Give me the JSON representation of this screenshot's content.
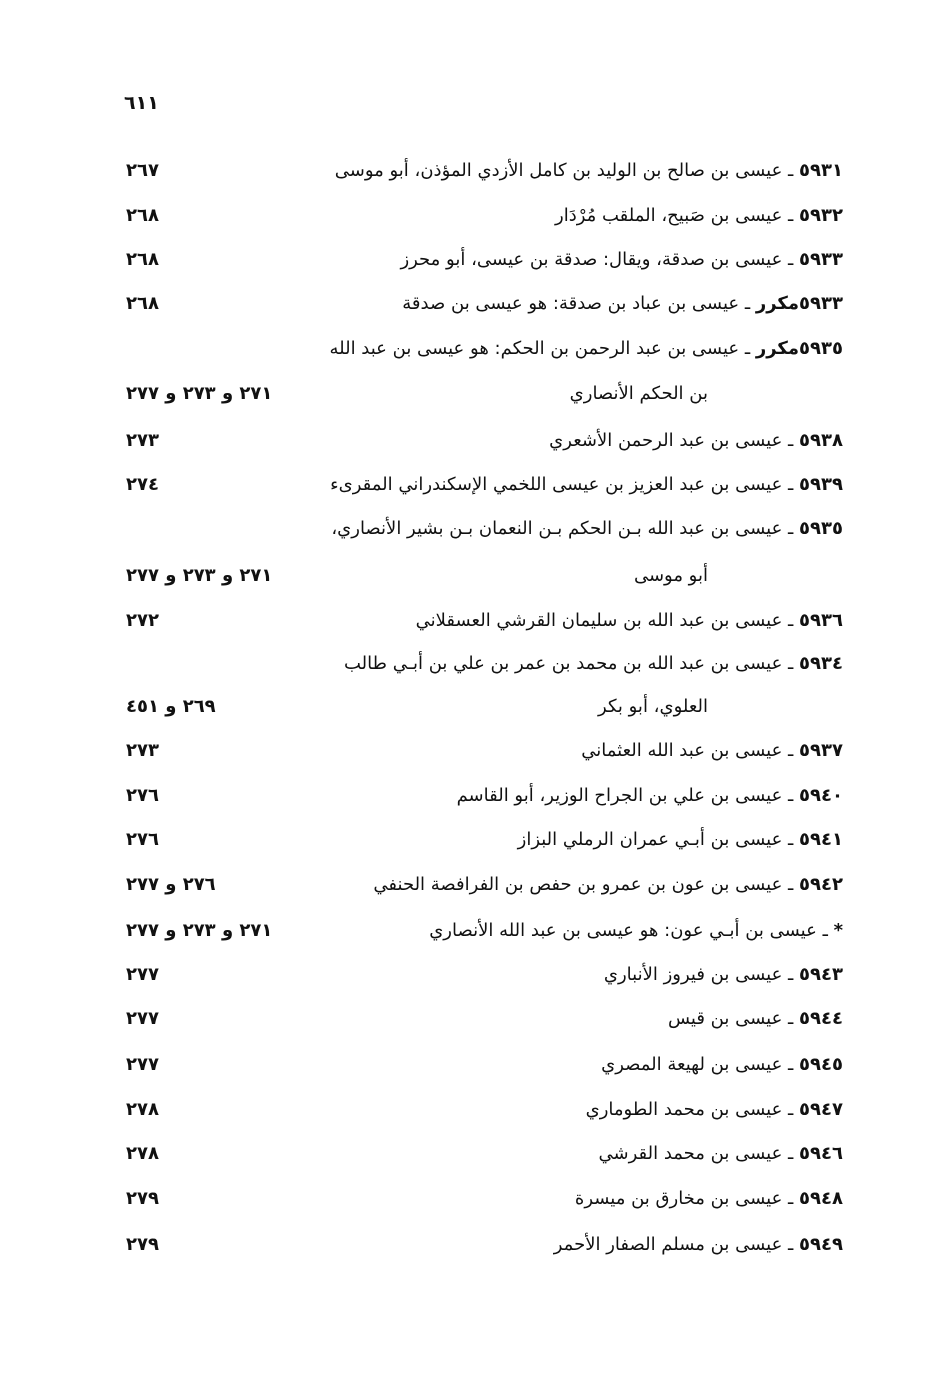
{
  "page_number": "٦١١",
  "lines": [
    {
      "num": "٥٩٣١",
      "text": " ـ عيسى بن صالح بن الوليد بن كامل الأزدي المؤذن، أبو موسى",
      "ref": "٢٦٧"
    },
    {
      "num": "٥٩٣٢",
      "text": " ـ عيسى بن صَبيح، الملقب مُرْدَار",
      "ref": "٢٦٨"
    },
    {
      "num": "٥٩٣٣",
      "text": " ـ عيسى بن صدقة، ويقال: صدقة بن عيسى، أبو محرز",
      "ref": "٢٦٨"
    },
    {
      "num": "٥٩٣٣مكرر",
      "text": " ـ عيسى بن عباد بن صدقة: هو عيسى بن صدقة",
      "ref": "٢٦٨"
    },
    {
      "num": "٥٩٣٥مكرر",
      "text": " ـ عيسى بن عبد الرحمن بن الحكم: هو عيسى بن عبد الله",
      "ref": ""
    },
    {
      "num": "",
      "text": "بن الحكم الأنصاري",
      "ref": "٢٧١ و ٢٧٣ و ٢٧٧",
      "cont": true
    },
    {
      "num": "٥٩٣٨",
      "text": " ـ عيسى بن عبد الرحمن الأشعري",
      "ref": "٢٧٣"
    },
    {
      "num": "٥٩٣٩",
      "text": " ـ عيسى بن عبد العزيز بن عيسى اللخمي الإسكندراني المقرىء",
      "ref": "٢٧٤"
    },
    {
      "num": "٥٩٣٥",
      "text": " ـ عيسى بن عبد الله بـن الحكم بـن النعمان بـن بشير الأنصاري،",
      "ref": ""
    },
    {
      "num": "",
      "text": "أبو موسى",
      "ref": "٢٧١ و ٢٧٣ و ٢٧٧",
      "cont": true
    },
    {
      "num": "٥٩٣٦",
      "text": " ـ عيسى بن عبد الله بن سليمان القرشي العسقلاني",
      "ref": "٢٧٢"
    },
    {
      "num": "٥٩٣٤",
      "text": " ـ عيسى بن عبد الله بن محمد بن عمر بن علي بن أبـي طالب",
      "ref": ""
    },
    {
      "num": "",
      "text": "العلوي، أبو بكر",
      "ref": "٢٦٩ و ٤٥١",
      "cont": true
    },
    {
      "num": "٥٩٣٧",
      "text": " ـ عيسى بن عبد الله العثماني",
      "ref": "٢٧٣"
    },
    {
      "num": "٥٩٤٠",
      "text": " ـ عيسى بن علي بن الجراح الوزير، أبو القاسم",
      "ref": "٢٧٦"
    },
    {
      "num": "٥٩٤١",
      "text": " ـ عيسى بن أبـي عمران الرملي البزاز",
      "ref": "٢٧٦"
    },
    {
      "num": "٥٩٤٢",
      "text": " ـ عيسى بن عون بن عمرو بن حفص بن الفرافصة الحنفي",
      "ref": "٢٧٦ و ٢٧٧"
    },
    {
      "num": "*",
      "text": " ـ عيسى بن أبـي عون: هو عيسى بن عبد الله الأنصاري",
      "ref": "٢٧١ و ٢٧٣ و ٢٧٧"
    },
    {
      "num": "٥٩٤٣",
      "text": " ـ عيسى بن فيروز الأنباري",
      "ref": "٢٧٧"
    },
    {
      "num": "٥٩٤٤",
      "text": " ـ عيسى بن قيس",
      "ref": "٢٧٧"
    },
    {
      "num": "٥٩٤٥",
      "text": " ـ عيسى بن لهيعة المصري",
      "ref": "٢٧٧"
    },
    {
      "num": "٥٩٤٧",
      "text": " ـ عيسى بن محمد الطوماري",
      "ref": "٢٧٨"
    },
    {
      "num": "٥٩٤٦",
      "text": " ـ عيسى بن محمد القرشي",
      "ref": "٢٧٨"
    },
    {
      "num": "٥٩٤٨",
      "text": " ـ عيسى بن مخارق بن ميسرة",
      "ref": "٢٧٩"
    },
    {
      "num": "٥٩٤٩",
      "text": " ـ عيسى بن مسلم الصفار الأحمر",
      "ref": "٢٧٩"
    }
  ]
}
